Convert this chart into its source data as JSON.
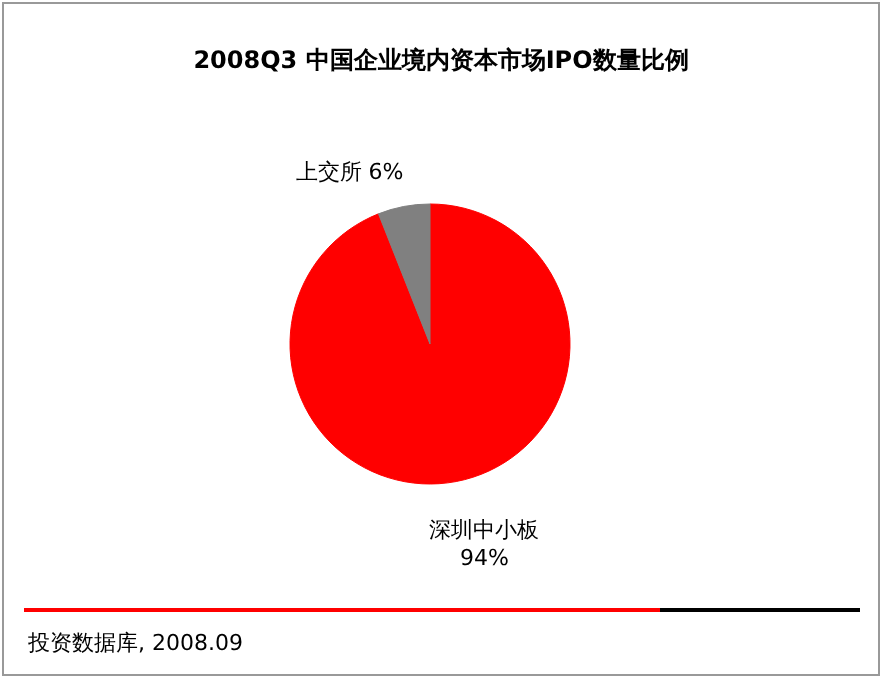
{
  "chart_data": {
    "type": "pie",
    "title": "2008Q3 中国企业境内资本市场IPO数量比例",
    "categories": [
      "深圳中小板",
      "上交所"
    ],
    "values": [
      94,
      6
    ],
    "colors": [
      "#ff0000",
      "#808080"
    ],
    "value_labels": [
      "94%",
      "6%"
    ],
    "annotations": [
      "投资数据库, 2008.09"
    ]
  }
}
